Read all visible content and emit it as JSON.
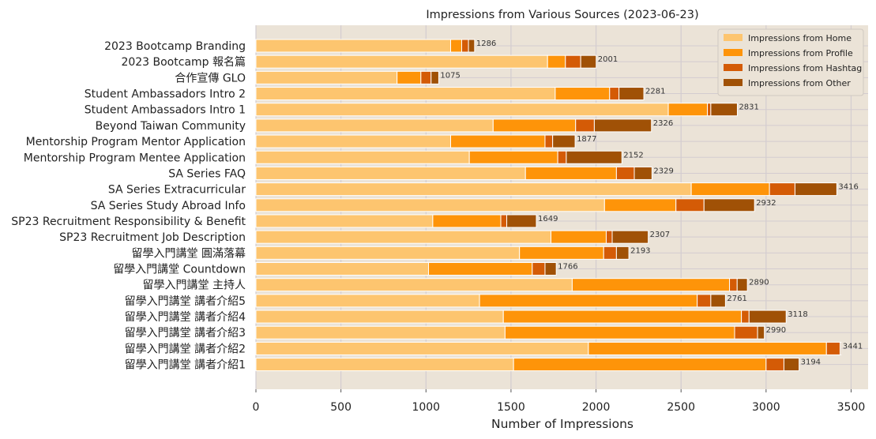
{
  "chart_data": {
    "type": "bar",
    "orientation": "horizontal",
    "stacked": true,
    "title": "Impressions from Various Sources (2023-06-23)",
    "xlabel": "Number of Impressions",
    "ylabel": "",
    "xlim": [
      0,
      3600
    ],
    "xticks": [
      0,
      500,
      1000,
      1500,
      2000,
      2500,
      3000,
      3500
    ],
    "grid": true,
    "legend_position": "top-right",
    "background_color": "#ebe3d7",
    "categories": [
      "2023 Bootcamp Branding",
      "2023 Bootcamp 報名篇",
      "合作宣傳 GLO",
      "Student Ambassadors Intro 2",
      "Student Ambassadors Intro 1",
      "Beyond Taiwan Community",
      "Mentorship Program Mentor Application",
      "Mentorship Program Mentee Application",
      "SA Series FAQ",
      "SA Series Extracurricular",
      "SA Series Study Abroad Info",
      "SP23 Recruitment Responsibility & Benefit",
      "SP23 Recruitment Job Description",
      "留學入門講堂 圓滿落幕",
      "留學入門講堂 Countdown",
      "留學入門講堂 主持人",
      "留學入門講堂 講者介紹5",
      "留學入門講堂 講者介紹4",
      "留學入門講堂 講者介紹3",
      "留學入門講堂 講者介紹2",
      "留學入門講堂 講者介紹1"
    ],
    "series": [
      {
        "name": "Impressions from Home",
        "color": "#fdc56f",
        "values": [
          1145,
          1715,
          830,
          1760,
          2425,
          1395,
          1145,
          1255,
          1585,
          2560,
          2050,
          1040,
          1735,
          1550,
          1015,
          1860,
          1315,
          1455,
          1465,
          1955,
          1515
        ]
      },
      {
        "name": "Impressions from Profile",
        "color": "#fe9409",
        "values": [
          65,
          105,
          140,
          320,
          230,
          485,
          555,
          520,
          535,
          460,
          420,
          400,
          325,
          495,
          610,
          925,
          1280,
          1400,
          1350,
          1400,
          1485
        ]
      },
      {
        "name": "Impressions from Hashtag",
        "color": "#d45b06",
        "values": [
          40,
          90,
          60,
          55,
          20,
          110,
          45,
          50,
          105,
          150,
          165,
          35,
          35,
          75,
          75,
          45,
          80,
          45,
          135,
          80,
          105
        ]
      },
      {
        "name": "Impressions from Other",
        "color": "#a05106",
        "values": [
          36,
          91,
          45,
          146,
          156,
          336,
          132,
          327,
          104,
          246,
          297,
          174,
          212,
          73,
          66,
          60,
          86,
          218,
          40,
          6,
          89
        ]
      }
    ],
    "totals": [
      1286,
      2001,
      1075,
      2281,
      2831,
      2326,
      1877,
      2152,
      2329,
      3416,
      2932,
      1649,
      2307,
      2193,
      1766,
      2890,
      2761,
      3118,
      2990,
      3441,
      3194
    ]
  }
}
